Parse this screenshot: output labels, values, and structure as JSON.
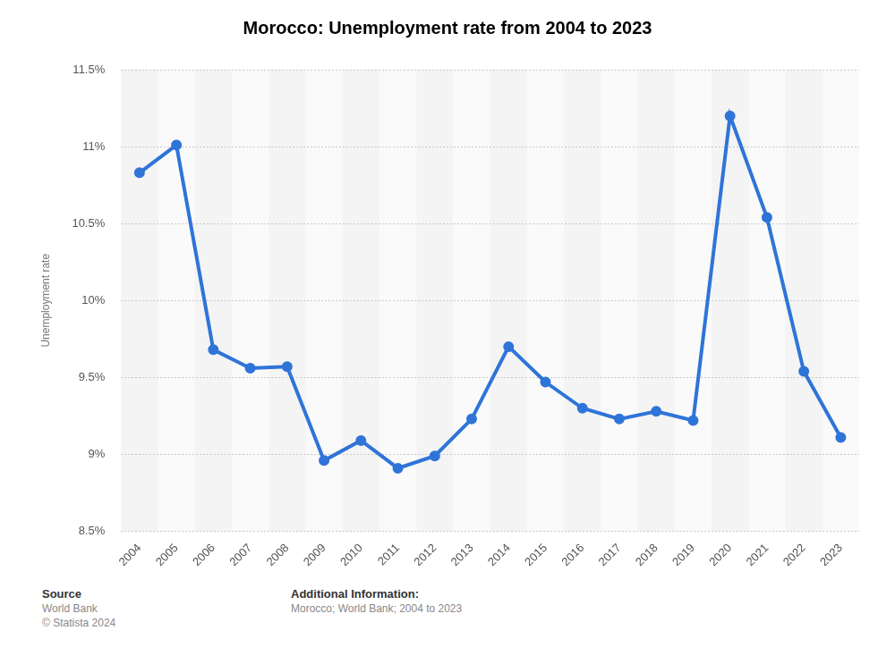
{
  "chart_data": {
    "type": "line",
    "title": "Morocco: Unemployment rate from 2004 to 2023",
    "y_label": "Unemployment rate",
    "categories": [
      "2004",
      "2005",
      "2006",
      "2007",
      "2008",
      "2009",
      "2010",
      "2011",
      "2012",
      "2013",
      "2014",
      "2015",
      "2016",
      "2017",
      "2018",
      "2019",
      "2020",
      "2021",
      "2022",
      "2023"
    ],
    "values": [
      10.83,
      11.01,
      9.68,
      9.56,
      9.57,
      8.96,
      9.09,
      8.91,
      8.99,
      9.23,
      9.7,
      9.47,
      9.3,
      9.23,
      9.28,
      9.22,
      11.2,
      10.54,
      9.54,
      9.11
    ],
    "color": "#2f74d8",
    "marker": "circle",
    "line_style": "solid",
    "ylim": [
      8.5,
      11.5
    ],
    "yticks": [
      {
        "value": 8.5,
        "label": "8.5%"
      },
      {
        "value": 9,
        "label": "9%"
      },
      {
        "value": 9.5,
        "label": "9.5%"
      },
      {
        "value": 10,
        "label": "10%"
      },
      {
        "value": 10.5,
        "label": "10.5%"
      },
      {
        "value": 11,
        "label": "11%"
      },
      {
        "value": 11.5,
        "label": "11.5%"
      }
    ],
    "grid": true,
    "source_label": "Source",
    "source": "World Bank",
    "copyright": "© Statista 2024",
    "additional_info_label": "Additional Information:",
    "additional_info": "Morocco; World Bank; 2004 to 2023"
  }
}
